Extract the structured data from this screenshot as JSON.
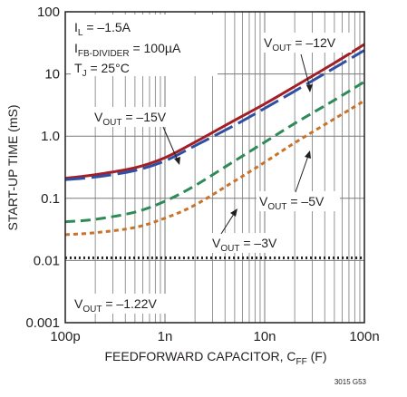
{
  "chart_data": {
    "type": "line",
    "xlabel": {
      "main": "FEEDFORWARD CAPACITOR, C",
      "sub": "FF",
      "unit": " (F)"
    },
    "ylabel": "START-UP TIME (mS)",
    "x_scale": "log",
    "y_scale": "log",
    "xlim": [
      1e-10,
      1e-07
    ],
    "ylim": [
      0.001,
      100
    ],
    "x_ticks": [
      {
        "value": 1e-10,
        "label": "100p"
      },
      {
        "value": 1e-09,
        "label": "1n"
      },
      {
        "value": 1e-08,
        "label": "10n"
      },
      {
        "value": 1e-07,
        "label": "100n"
      }
    ],
    "y_ticks": [
      {
        "value": 0.001,
        "label": "0.001"
      },
      {
        "value": 0.01,
        "label": "0.01"
      },
      {
        "value": 0.1,
        "label": "0.1"
      },
      {
        "value": 1,
        "label": "1.0"
      },
      {
        "value": 10,
        "label": "10"
      },
      {
        "value": 100,
        "label": "100"
      }
    ],
    "grid": true,
    "conditions": [
      {
        "main": "I",
        "sub": "L",
        "rest": " = –1.5A"
      },
      {
        "main": "I",
        "sub": "FB-DIVIDER",
        "rest": " = 100µA"
      },
      {
        "main": "T",
        "sub": "J",
        "rest": " = 25°C"
      }
    ],
    "series": [
      {
        "name": "V_OUT = –12V",
        "label": {
          "main": "V",
          "sub": "OUT",
          "rest": " = –12V"
        },
        "color": "#a31f24",
        "dash": "solid",
        "x": [
          1e-10,
          2e-10,
          5e-10,
          1e-09,
          2e-09,
          5e-09,
          1e-08,
          2e-08,
          5e-08,
          1e-07
        ],
        "y": [
          0.21,
          0.24,
          0.31,
          0.45,
          0.8,
          1.8,
          3.3,
          6.3,
          15,
          30
        ]
      },
      {
        "name": "V_OUT = –15V",
        "label": {
          "main": "V",
          "sub": "OUT",
          "rest": " = –15V"
        },
        "color": "#2e4fa3",
        "dash": "long",
        "x": [
          1e-10,
          2e-10,
          5e-10,
          1e-09,
          2e-09,
          5e-09,
          1e-08,
          2e-08,
          5e-08,
          1e-07
        ],
        "y": [
          0.2,
          0.22,
          0.28,
          0.4,
          0.7,
          1.5,
          2.8,
          5.3,
          12.5,
          24
        ]
      },
      {
        "name": "V_OUT = –5V",
        "label": {
          "main": "V",
          "sub": "OUT",
          "rest": " = –5V"
        },
        "color": "#2e8b57",
        "dash": "medium",
        "x": [
          1e-10,
          2e-10,
          5e-10,
          1e-09,
          2e-09,
          5e-09,
          1e-08,
          2e-08,
          5e-08,
          1e-07
        ],
        "y": [
          0.042,
          0.046,
          0.06,
          0.09,
          0.16,
          0.4,
          0.8,
          1.6,
          3.8,
          7.5
        ]
      },
      {
        "name": "V_OUT = –3V",
        "label": {
          "main": "V",
          "sub": "OUT",
          "rest": " = –3V"
        },
        "color": "#c8732b",
        "dash": "short",
        "x": [
          1e-10,
          2e-10,
          5e-10,
          1e-09,
          2e-09,
          5e-09,
          1e-08,
          2e-08,
          5e-08,
          1e-07
        ],
        "y": [
          0.026,
          0.028,
          0.034,
          0.048,
          0.078,
          0.19,
          0.38,
          0.78,
          1.9,
          3.7
        ]
      },
      {
        "name": "V_OUT = –1.22V",
        "label": {
          "main": "V",
          "sub": "OUT",
          "rest": " = –1.22V"
        },
        "color": "#231f20",
        "dash": "dotted",
        "x": [
          1e-10,
          1e-07
        ],
        "y": [
          0.011,
          0.011
        ]
      }
    ]
  },
  "figure_id": "3015 G53"
}
